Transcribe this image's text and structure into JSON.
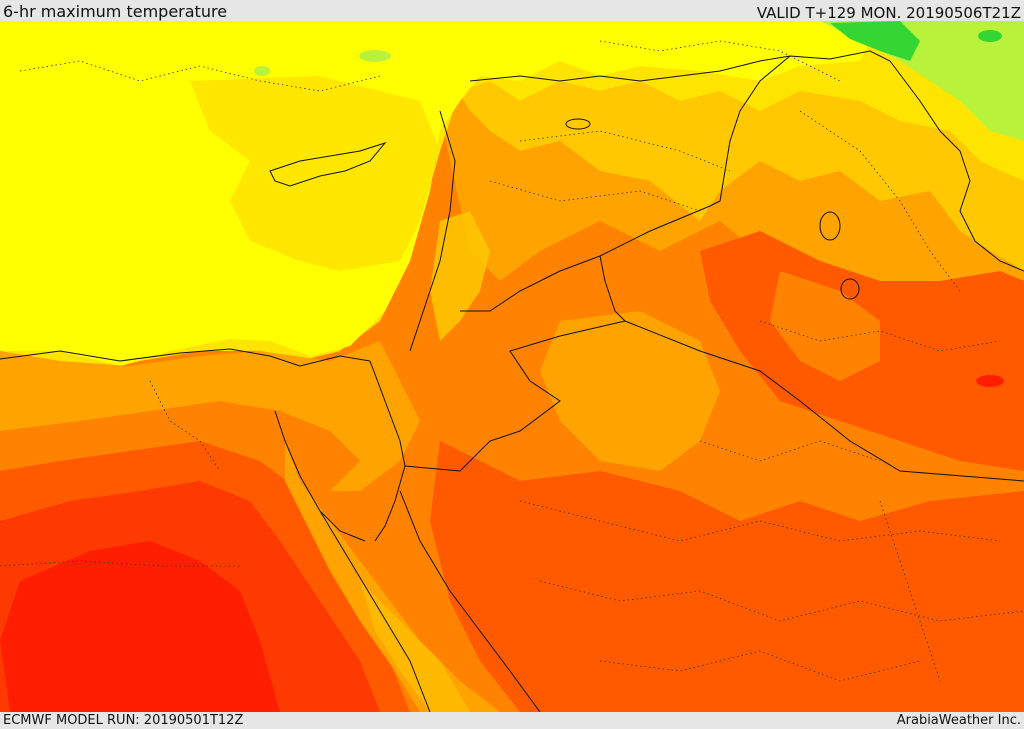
{
  "header": {
    "title": "6-hr maximum temperature",
    "valid": "VALID T+129 MON. 20190506T21Z"
  },
  "footer": {
    "model_run": "ECMWF MODEL RUN: 20190501T12Z",
    "credit": "ArabiaWeather Inc."
  },
  "map": {
    "variable": "6-hr maximum temperature",
    "colors": {
      "green": "#33d633",
      "light_green": "#b9f23a",
      "bright_yellow": "#ffff00",
      "yellow": "#ffe400",
      "gold": "#ffc800",
      "light_orange": "#ffa300",
      "orange": "#ff8200",
      "dark_orange": "#ff5a00",
      "red_orange": "#ff3a00",
      "red": "#ff1e00",
      "borders": "#111111"
    }
  }
}
